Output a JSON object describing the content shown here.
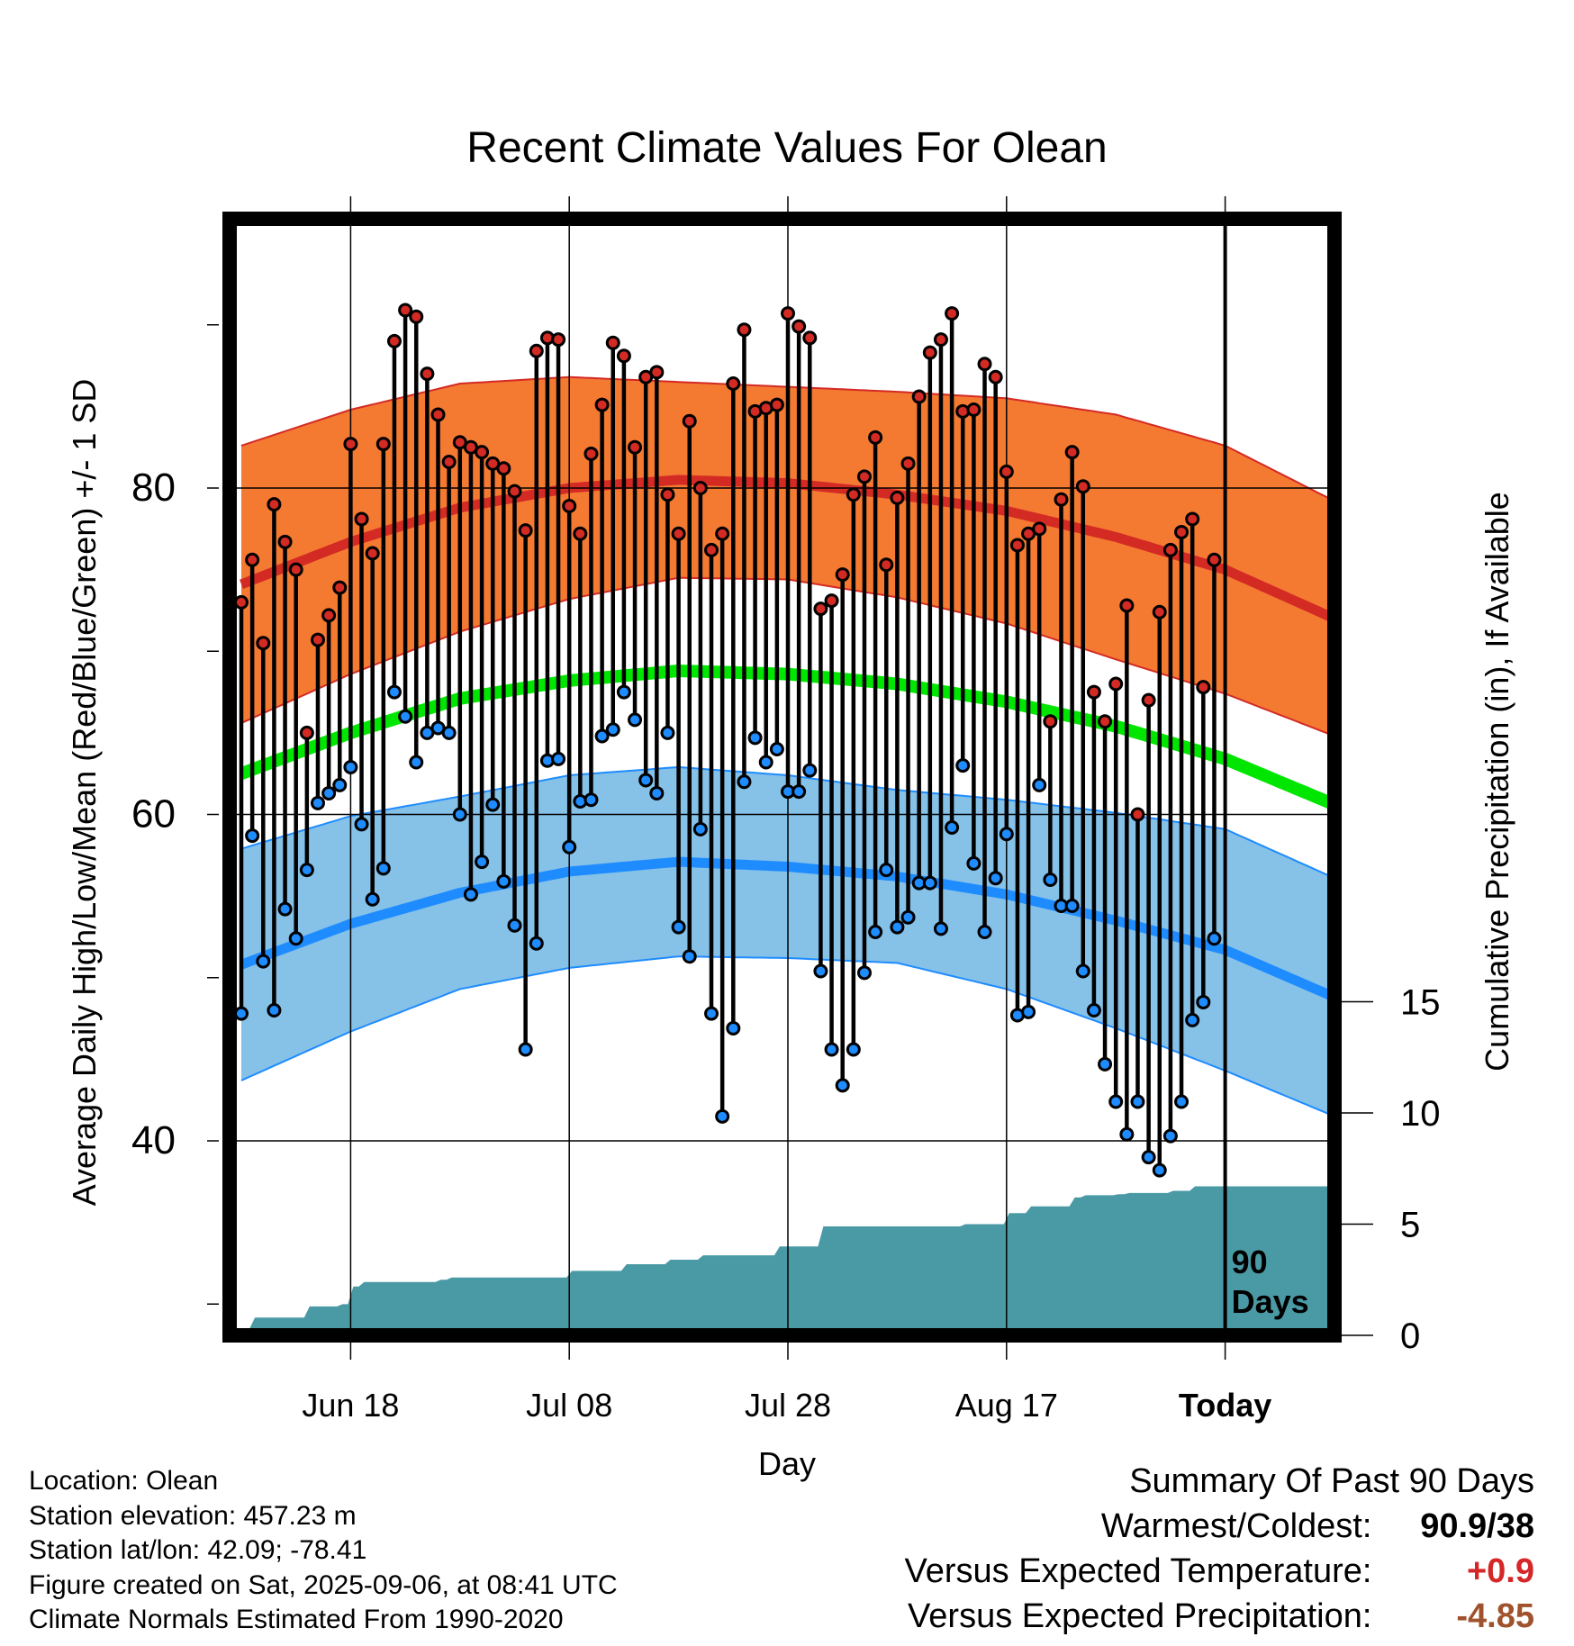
{
  "chart_data": {
    "type": "line",
    "title": "Recent Climate Values For Olean",
    "xlabel": "Day",
    "ylabel": "Average Daily High/Low/Mean (Red/Blue/Green) +/- 1 SD",
    "y2label": "Cumulative Precipitation (in), If Available",
    "ylim": [
      28.5,
      96.5
    ],
    "y2lim": [
      -0.3,
      50
    ],
    "yticks": [
      80,
      60,
      40
    ],
    "y2ticks": [
      15,
      10,
      5,
      0
    ],
    "xlim": [
      1,
      101
    ],
    "xticks": [
      {
        "day": 11,
        "label": "Jun 18"
      },
      {
        "day": 31,
        "label": "Jul 08"
      },
      {
        "day": 51,
        "label": "Jul 28"
      },
      {
        "day": 71,
        "label": "Aug 17"
      },
      {
        "day": 91,
        "label": "Today"
      }
    ],
    "grid": true,
    "today_marker": {
      "day": 91,
      "label_line1": "90",
      "label_line2": "Days"
    },
    "normals": {
      "days": [
        1,
        11,
        21,
        31,
        41,
        51,
        61,
        71,
        81,
        91,
        101
      ],
      "high_mean": [
        74.1,
        76.7,
        78.8,
        80.0,
        80.5,
        80.3,
        79.6,
        78.6,
        77.0,
        75.0,
        72.0
      ],
      "high_sd": [
        8.5,
        8.1,
        7.6,
        6.8,
        6.0,
        5.9,
        6.3,
        6.9,
        7.5,
        7.6,
        7.2
      ],
      "low_mean": [
        50.8,
        53.3,
        55.2,
        56.5,
        57.1,
        56.8,
        56.2,
        55.1,
        53.5,
        51.7,
        48.8
      ],
      "low_sd": [
        7.1,
        6.6,
        5.9,
        5.9,
        5.8,
        5.6,
        5.3,
        5.8,
        6.6,
        7.4,
        7.3
      ],
      "avg_mean": [
        62.5,
        65.0,
        67.1,
        68.2,
        68.8,
        68.6,
        68.0,
        66.9,
        65.4,
        63.4,
        60.6
      ]
    },
    "series": [
      {
        "name": "High",
        "days": [
          1,
          2,
          3,
          4,
          5,
          6,
          7,
          8,
          9,
          10,
          11,
          12,
          13,
          14,
          15,
          16,
          17,
          18,
          19,
          20,
          21,
          22,
          23,
          24,
          25,
          26,
          27,
          28,
          29,
          30,
          31,
          32,
          33,
          34,
          35,
          36,
          37,
          38,
          39,
          40,
          41,
          42,
          43,
          44,
          45,
          46,
          47,
          48,
          49,
          50,
          51,
          52,
          53,
          54,
          55,
          56,
          57,
          58,
          59,
          60,
          61,
          62,
          63,
          64,
          65,
          66,
          67,
          68,
          69,
          70,
          71,
          72,
          73,
          74,
          75,
          76,
          77,
          78,
          79,
          80,
          81,
          82,
          83,
          84,
          85,
          86,
          87,
          88,
          89,
          90
        ],
        "values": [
          73,
          75.6,
          70.5,
          79,
          76.7,
          75,
          65,
          70.7,
          72.2,
          73.9,
          82.7,
          78.1,
          76,
          82.7,
          89,
          90.9,
          90.5,
          87,
          84.5,
          81.6,
          82.8,
          82.5,
          82.2,
          81.5,
          81.2,
          79.8,
          77.4,
          88.4,
          89.2,
          89.1,
          78.9,
          77.2,
          82.1,
          85.1,
          88.9,
          88.1,
          82.5,
          86.8,
          87.1,
          79.6,
          77.2,
          84.1,
          80,
          76.2,
          77.2,
          86.4,
          89.7,
          84.7,
          84.9,
          85.1,
          90.7,
          89.9,
          89.2,
          72.6,
          73.1,
          74.7,
          79.6,
          80.7,
          83.1,
          75.3,
          79.4,
          81.5,
          85.6,
          88.3,
          89.1,
          90.7,
          84.7,
          84.8,
          87.6,
          86.8,
          81,
          76.5,
          77.2,
          77.5,
          65.7,
          79.3,
          82.2,
          80.1,
          67.5,
          65.7,
          68,
          72.8,
          60,
          67,
          72.4,
          76.2,
          77.3,
          78.1,
          67.8,
          75.6
        ]
      },
      {
        "name": "Low",
        "days": [
          1,
          2,
          3,
          4,
          5,
          6,
          7,
          8,
          9,
          10,
          11,
          12,
          13,
          14,
          15,
          16,
          17,
          18,
          19,
          20,
          21,
          22,
          23,
          24,
          25,
          26,
          27,
          28,
          29,
          30,
          31,
          32,
          33,
          34,
          35,
          36,
          37,
          38,
          39,
          40,
          41,
          42,
          43,
          44,
          45,
          46,
          47,
          48,
          49,
          50,
          51,
          52,
          53,
          54,
          55,
          56,
          57,
          58,
          59,
          60,
          61,
          62,
          63,
          64,
          65,
          66,
          67,
          68,
          69,
          70,
          71,
          72,
          73,
          74,
          75,
          76,
          77,
          78,
          79,
          80,
          81,
          82,
          83,
          84,
          85,
          86,
          87,
          88,
          89,
          90
        ],
        "values": [
          47.8,
          58.7,
          51,
          48,
          54.2,
          52.4,
          56.6,
          60.7,
          61.3,
          61.8,
          62.9,
          59.4,
          54.8,
          56.7,
          67.5,
          66,
          63.2,
          65,
          65.3,
          65,
          60,
          55.1,
          57.1,
          60.6,
          55.9,
          53.2,
          45.6,
          52.1,
          63.3,
          63.4,
          58,
          60.8,
          60.9,
          64.8,
          65.2,
          67.5,
          65.8,
          62.1,
          61.3,
          65,
          53.1,
          51.3,
          59.1,
          47.8,
          41.5,
          46.9,
          62,
          64.7,
          63.2,
          64,
          61.4,
          61.4,
          62.7,
          50.4,
          45.6,
          43.4,
          45.6,
          50.3,
          52.8,
          56.6,
          53.1,
          53.7,
          55.8,
          55.8,
          53,
          59.2,
          63,
          57,
          52.8,
          56.1,
          58.8,
          47.7,
          47.9,
          61.8,
          56,
          54.4,
          54.4,
          50.4,
          48,
          44.7,
          42.4,
          40.4,
          42.4,
          39,
          38.2,
          40.3,
          42.4,
          47.4,
          48.5,
          52.4
        ]
      },
      {
        "name": "Cumulative Precipitation",
        "days": [
          1,
          2,
          3,
          4,
          5,
          6,
          7,
          8,
          9,
          10,
          11,
          12,
          13,
          14,
          15,
          16,
          17,
          18,
          19,
          20,
          21,
          22,
          23,
          24,
          25,
          26,
          27,
          28,
          29,
          30,
          31,
          32,
          33,
          34,
          35,
          36,
          37,
          38,
          39,
          40,
          41,
          42,
          43,
          44,
          45,
          46,
          47,
          48,
          49,
          50,
          51,
          52,
          53,
          54,
          55,
          56,
          57,
          58,
          59,
          60,
          61,
          62,
          63,
          64,
          65,
          66,
          67,
          68,
          69,
          70,
          71,
          72,
          73,
          74,
          75,
          76,
          77,
          78,
          79,
          80,
          81,
          82,
          83,
          84,
          85,
          86,
          87,
          88,
          89,
          90,
          101
        ],
        "values": [
          0.3,
          0.8,
          0.8,
          0.8,
          0.8,
          0.8,
          1.3,
          1.3,
          1.3,
          1.4,
          2.2,
          2.4,
          2.4,
          2.4,
          2.4,
          2.4,
          2.4,
          2.4,
          2.5,
          2.6,
          2.6,
          2.6,
          2.6,
          2.6,
          2.6,
          2.6,
          2.6,
          2.6,
          2.6,
          2.6,
          2.9,
          2.9,
          2.9,
          2.9,
          2.9,
          3.2,
          3.2,
          3.2,
          3.2,
          3.4,
          3.4,
          3.4,
          3.6,
          3.6,
          3.6,
          3.6,
          3.6,
          3.6,
          3.6,
          4.0,
          4.0,
          4.0,
          4.0,
          4.9,
          4.9,
          4.9,
          4.9,
          4.9,
          4.9,
          4.9,
          4.9,
          4.9,
          4.9,
          4.9,
          4.9,
          4.9,
          5.0,
          5.0,
          5.0,
          5.0,
          5.5,
          5.5,
          5.8,
          5.8,
          5.8,
          5.8,
          6.2,
          6.3,
          6.3,
          6.3,
          6.35,
          6.4,
          6.4,
          6.4,
          6.4,
          6.5,
          6.5,
          6.7,
          6.7,
          6.7,
          6.7
        ]
      }
    ]
  },
  "info": {
    "location": "Location: Olean",
    "elevation": "Station elevation: 457.23 m",
    "latlon": "Station lat/lon: 42.09; -78.41",
    "created": "Figure created on Sat, 2025-09-06, at 08:41 UTC",
    "normals": "Climate Normals Estimated From 1990-2020"
  },
  "summary": {
    "title": "Summary Of Past 90 Days",
    "warmest_label": "Warmest/Coldest:",
    "warmest_value": "90.9",
    "coldest_value": "/38",
    "temp_label": "Versus Expected Temperature:",
    "temp_value": "+0.9",
    "precip_label": "Versus Expected Precipitation:",
    "precip_value": "-4.85",
    "colors": {
      "positive": "#d62728",
      "negative": "#a0522d"
    }
  },
  "colors": {
    "high_band": "#f47a32",
    "high_line": "#d42a24",
    "low_band": "#86c1e8",
    "low_line": "#1e8cff",
    "mean_line": "#00e600",
    "precip": "#4a9aa5"
  }
}
